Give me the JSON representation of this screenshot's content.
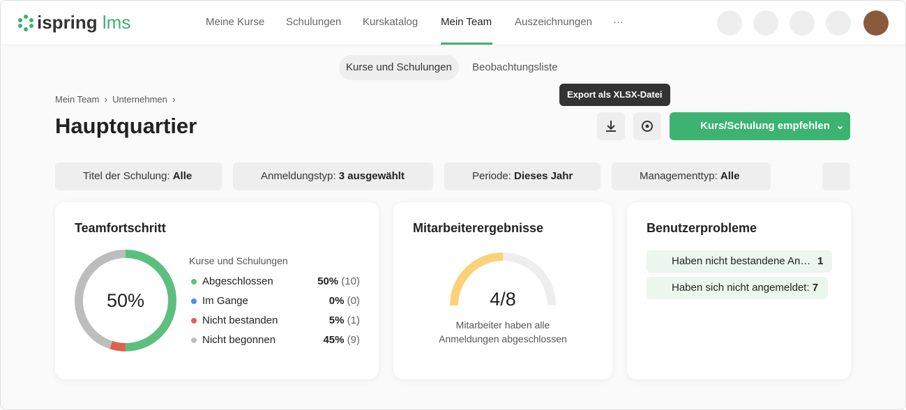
{
  "header": {
    "logo_brand": "ispring",
    "logo_product": "lms",
    "nav": [
      "Meine Kurse",
      "Schulungen",
      "Kurskatalog",
      "Mein Team",
      "Auszeichnungen",
      "···"
    ],
    "active_nav": 3
  },
  "tabs": [
    "Kurse und Schulungen",
    "Beobachtungsliste"
  ],
  "breadcrumb": [
    "Mein Team",
    "Unternehmen"
  ],
  "page_title": "Hauptquartier",
  "tooltip": "Export als XLSX-Datei",
  "recommend_button": "Kurs/Schulung empfehlen",
  "filters": [
    {
      "label": "Titel der Schulung:",
      "value": "Alle"
    },
    {
      "label": "Anmeldungstyp:",
      "value": "3 ausgewählt"
    },
    {
      "label": "Periode:",
      "value": "Dieses Jahr"
    },
    {
      "label": "Managementtyp:",
      "value": "Alle"
    }
  ],
  "team_progress": {
    "title": "Teamfortschritt",
    "center_label": "50%",
    "legend_title": "Kurse und Schulungen",
    "items": [
      {
        "name": "Abgeschlossen",
        "color": "#5cbf7f",
        "value": 50,
        "value_label": "50%",
        "count_label": "(10)"
      },
      {
        "name": "Im Gange",
        "color": "#4a90e2",
        "value": 0,
        "value_label": "0%",
        "count_label": "(0)"
      },
      {
        "name": "Nicht bestanden",
        "color": "#e0604e",
        "value": 5,
        "value_label": "5%",
        "count_label": "(1)"
      },
      {
        "name": "Nicht begonnen",
        "color": "#bdbdbd",
        "value": 45,
        "value_label": "45%",
        "count_label": "(9)"
      }
    ]
  },
  "employee_results": {
    "title": "Mitarbeiterergebnisse",
    "value_label": "4/8",
    "caption_lines": [
      "Mitarbeiter haben alle",
      "Anmeldungen abgeschlossen"
    ]
  },
  "user_problems": {
    "title": "Benutzerprobleme",
    "items": [
      {
        "label": "Haben nicht bestandene An…",
        "count": "1"
      },
      {
        "label": "Haben sich nicht angemeldet:",
        "count": "7"
      }
    ]
  }
}
